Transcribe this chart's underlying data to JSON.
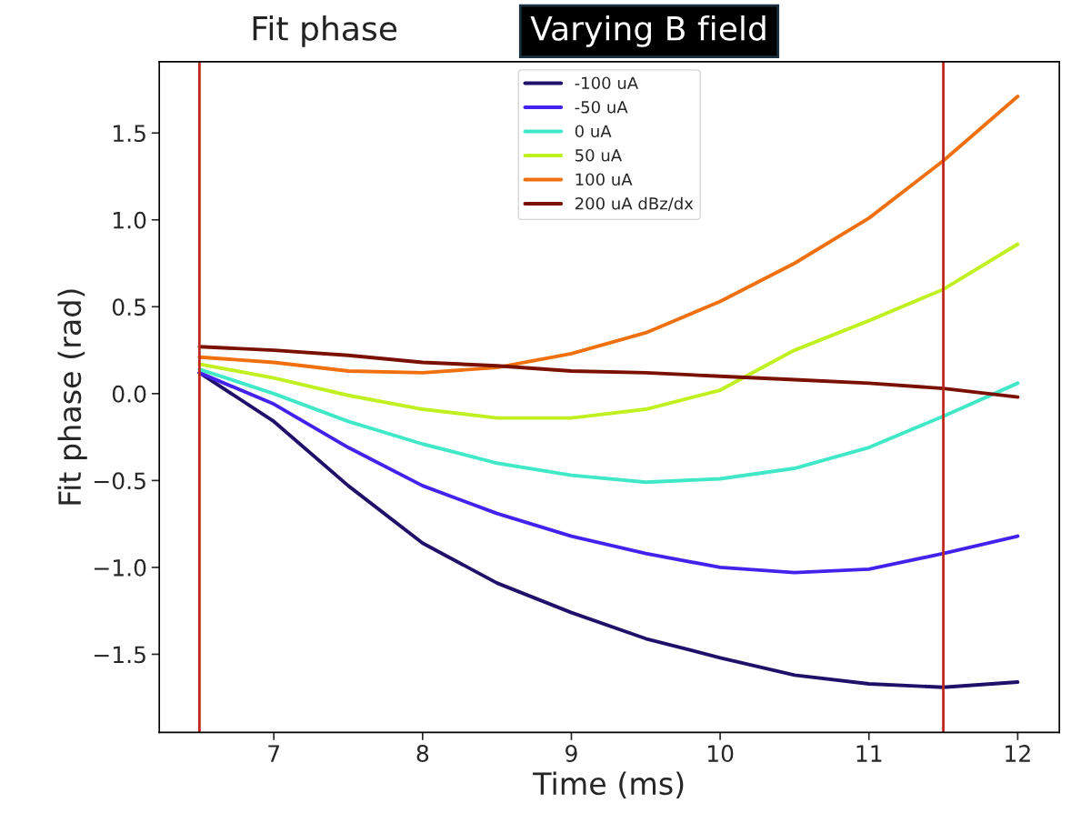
{
  "chart_data": {
    "type": "line",
    "title": "Fit phase",
    "subtitle": "Varying B field",
    "xlabel": "Time (ms)",
    "ylabel": "Fit phase (rad)",
    "x": [
      6.5,
      7.0,
      7.5,
      8.0,
      8.5,
      9.0,
      9.5,
      10.0,
      10.5,
      11.0,
      11.5,
      12.0
    ],
    "series": [
      {
        "name": "-100 uA",
        "color": "#20106a",
        "values": [
          0.12,
          -0.16,
          -0.53,
          -0.86,
          -1.09,
          -1.26,
          -1.41,
          -1.52,
          -1.62,
          -1.67,
          -1.69,
          -1.66
        ]
      },
      {
        "name": "-50 uA",
        "color": "#4422ee",
        "values": [
          0.12,
          -0.06,
          -0.31,
          -0.53,
          -0.69,
          -0.82,
          -0.92,
          -1.0,
          -1.03,
          -1.01,
          -0.92,
          -0.82
        ]
      },
      {
        "name": "0 uA",
        "color": "#40e8c8",
        "values": [
          0.14,
          0.0,
          -0.16,
          -0.29,
          -0.4,
          -0.47,
          -0.51,
          -0.49,
          -0.43,
          -0.31,
          -0.13,
          0.06
        ]
      },
      {
        "name": "50 uA",
        "color": "#c0f020",
        "values": [
          0.17,
          0.09,
          -0.01,
          -0.09,
          -0.14,
          -0.14,
          -0.09,
          0.02,
          0.25,
          0.42,
          0.6,
          0.86
        ]
      },
      {
        "name": "100 uA",
        "color": "#f07010",
        "values": [
          0.21,
          0.18,
          0.13,
          0.12,
          0.15,
          0.23,
          0.35,
          0.53,
          0.75,
          1.01,
          1.34,
          1.71
        ]
      },
      {
        "name": "200 uA dBz/dx",
        "color": "#7a1000",
        "values": [
          0.27,
          0.25,
          0.22,
          0.18,
          0.16,
          0.13,
          0.12,
          0.1,
          0.08,
          0.06,
          0.03,
          -0.02
        ]
      }
    ],
    "xlim": [
      6.23,
      12.28
    ],
    "xticks": [
      7,
      8,
      9,
      10,
      11,
      12
    ],
    "ylim": [
      -1.95,
      1.91
    ],
    "yticks": [
      {
        "value": -1.5,
        "label": "−1.5"
      },
      {
        "value": -1.0,
        "label": "−1.0"
      },
      {
        "value": -0.5,
        "label": "−0.5"
      },
      {
        "value": 0.0,
        "label": "0.0"
      },
      {
        "value": 0.5,
        "label": "0.5"
      },
      {
        "value": 1.0,
        "label": "1.0"
      },
      {
        "value": 1.5,
        "label": "1.5"
      }
    ],
    "ref_lines": [
      {
        "axis": "x",
        "value": 6.5,
        "color": "#c0281c"
      },
      {
        "axis": "x",
        "value": 11.5,
        "color": "#c0281c"
      }
    ],
    "grid": false,
    "legend": "top",
    "marker": "none",
    "line_style": "solid"
  }
}
